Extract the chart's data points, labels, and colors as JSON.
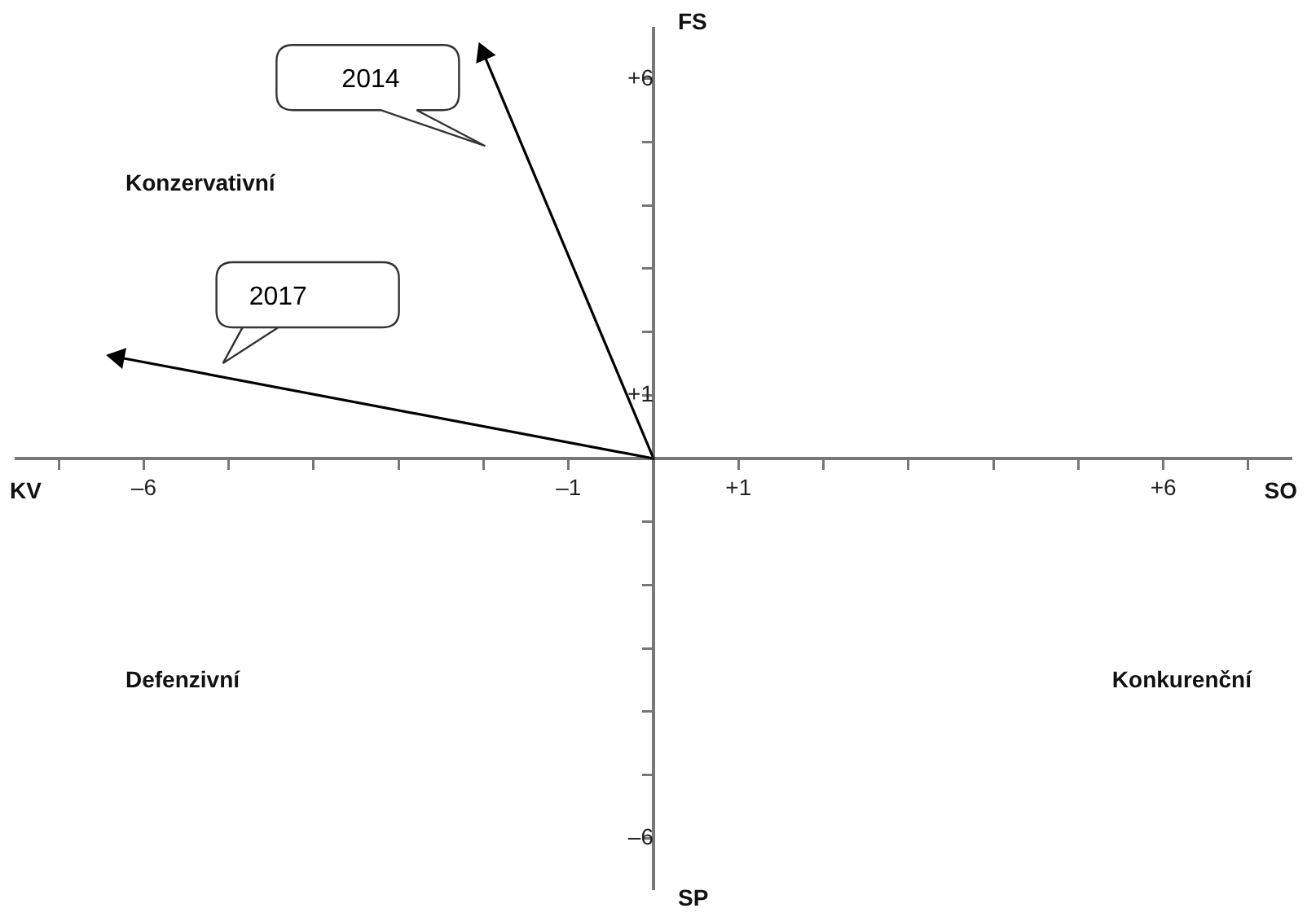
{
  "chart_data": {
    "type": "line",
    "xlim": [
      -7.5,
      7.5
    ],
    "ylim": [
      -6.8,
      6.8
    ],
    "xticks": [
      {
        "value": -7,
        "label": null
      },
      {
        "value": -6,
        "label": "–6"
      },
      {
        "value": -5,
        "label": null
      },
      {
        "value": -4,
        "label": null
      },
      {
        "value": -3,
        "label": null
      },
      {
        "value": -2,
        "label": null
      },
      {
        "value": -1,
        "label": "–1"
      },
      {
        "value": 1,
        "label": "+1"
      },
      {
        "value": 2,
        "label": null
      },
      {
        "value": 3,
        "label": null
      },
      {
        "value": 4,
        "label": null
      },
      {
        "value": 5,
        "label": null
      },
      {
        "value": 6,
        "label": "+6"
      },
      {
        "value": 7,
        "label": null
      }
    ],
    "yticks": [
      {
        "value": -6,
        "label": "–6"
      },
      {
        "value": -5,
        "label": null
      },
      {
        "value": -4,
        "label": null
      },
      {
        "value": -3,
        "label": null
      },
      {
        "value": -2,
        "label": null
      },
      {
        "value": -1,
        "label": null
      },
      {
        "value": 1,
        "label": "+1"
      },
      {
        "value": 2,
        "label": null
      },
      {
        "value": 3,
        "label": null
      },
      {
        "value": 4,
        "label": null
      },
      {
        "value": 5,
        "label": null
      },
      {
        "value": 6,
        "label": "+6"
      }
    ],
    "grid": false,
    "legend": false,
    "marker": "triangle",
    "line_style": "solid",
    "series": [
      {
        "name": "2014",
        "color": "#000000",
        "x": [
          0,
          -2.0
        ],
        "values": [
          0,
          6.4
        ]
      },
      {
        "name": "2017",
        "color": "#000000",
        "x": [
          0,
          -6.3
        ],
        "values": [
          0,
          1.6
        ]
      }
    ],
    "annotations": [
      "KV",
      "SO",
      "FS",
      "SP",
      "Konzervativní",
      "Defenzivní",
      "Konkurenční"
    ]
  }
}
